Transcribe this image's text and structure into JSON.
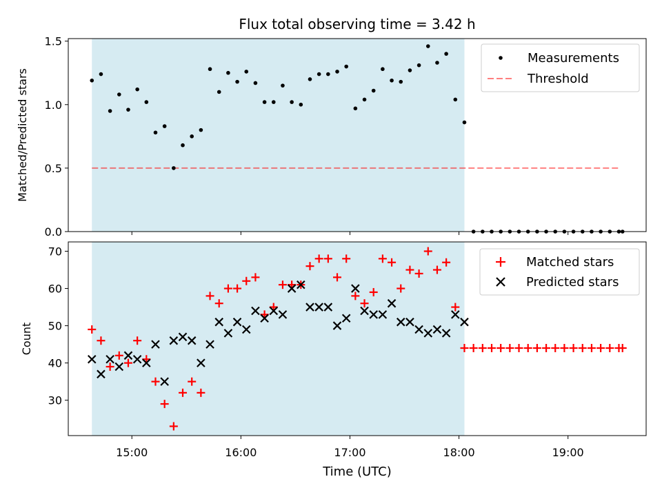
{
  "title": "Flux total observing time = 3.42 h",
  "xlabel": "Time (UTC)",
  "x_ticks": [
    "15:00",
    "16:00",
    "17:00",
    "18:00",
    "19:00"
  ],
  "colors": {
    "shade": "#add8e6",
    "measure": "#000000",
    "threshold": "#ff0000",
    "matched": "#ff0000",
    "predicted": "#000000"
  },
  "chart_data": [
    {
      "type": "scatter",
      "ylabel": "Matched/Predicted stars",
      "ylim": [
        0,
        1.52
      ],
      "y_ticks": [
        "0.0",
        "0.5",
        "1.0",
        "1.5"
      ],
      "shaded_interval": [
        "14:38",
        "18:03"
      ],
      "legend": {
        "placement": "top-right",
        "entries": [
          "Measurements",
          "Threshold"
        ]
      },
      "threshold": {
        "y": 0.5,
        "x_range": [
          "14:38",
          "19:28"
        ]
      },
      "measurements": {
        "x": [
          "14:38",
          "14:43",
          "14:48",
          "14:53",
          "14:58",
          "15:03",
          "15:08",
          "15:13",
          "15:18",
          "15:23",
          "15:28",
          "15:33",
          "15:38",
          "15:43",
          "15:48",
          "15:53",
          "15:58",
          "16:03",
          "16:08",
          "16:13",
          "16:18",
          "16:23",
          "16:28",
          "16:33",
          "16:38",
          "16:43",
          "16:48",
          "16:53",
          "16:58",
          "17:03",
          "17:08",
          "17:13",
          "17:18",
          "17:23",
          "17:28",
          "17:33",
          "17:38",
          "17:43",
          "17:48",
          "17:53",
          "17:58",
          "18:03",
          "18:08",
          "18:13",
          "18:18",
          "18:23",
          "18:28",
          "18:33",
          "18:38",
          "18:43",
          "18:48",
          "18:53",
          "18:58",
          "19:03",
          "19:08",
          "19:13",
          "19:18",
          "19:23",
          "19:28",
          "19:30"
        ],
        "y": [
          1.19,
          1.24,
          0.95,
          1.08,
          0.96,
          1.12,
          1.02,
          0.78,
          0.83,
          0.5,
          0.68,
          0.75,
          0.8,
          1.28,
          1.1,
          1.25,
          1.18,
          1.26,
          1.17,
          1.02,
          1.02,
          1.15,
          1.02,
          1.0,
          1.2,
          1.24,
          1.24,
          1.26,
          1.3,
          0.97,
          1.04,
          1.11,
          1.28,
          1.19,
          1.18,
          1.27,
          1.31,
          1.46,
          1.33,
          1.4,
          1.04,
          0.86,
          0,
          0,
          0,
          0,
          0,
          0,
          0,
          0,
          0,
          0,
          0,
          0,
          0,
          0,
          0,
          0,
          0,
          0
        ]
      }
    },
    {
      "type": "scatter",
      "ylabel": "Count",
      "ylim": [
        20.5,
        72.5
      ],
      "y_ticks": [
        "30",
        "40",
        "50",
        "60",
        "70"
      ],
      "shaded_interval": [
        "14:38",
        "18:03"
      ],
      "legend": {
        "placement": "top-right",
        "entries": [
          "Matched stars",
          "Predicted stars"
        ]
      },
      "x": [
        "14:38",
        "14:43",
        "14:48",
        "14:53",
        "14:58",
        "15:03",
        "15:08",
        "15:13",
        "15:18",
        "15:23",
        "15:28",
        "15:33",
        "15:38",
        "15:43",
        "15:48",
        "15:53",
        "15:58",
        "16:03",
        "16:08",
        "16:13",
        "16:18",
        "16:23",
        "16:28",
        "16:33",
        "16:38",
        "16:43",
        "16:48",
        "16:53",
        "16:58",
        "17:03",
        "17:08",
        "17:13",
        "17:18",
        "17:23",
        "17:28",
        "17:33",
        "17:38",
        "17:43",
        "17:48",
        "17:53",
        "17:58",
        "18:03",
        "18:08",
        "18:13",
        "18:18",
        "18:23",
        "18:28",
        "18:33",
        "18:38",
        "18:43",
        "18:48",
        "18:53",
        "18:58",
        "19:03",
        "19:08",
        "19:13",
        "19:18",
        "19:23",
        "19:28",
        "19:30"
      ],
      "series": [
        {
          "name": "Matched stars",
          "values": [
            49,
            46,
            39,
            42,
            40,
            46,
            41,
            35,
            29,
            23,
            32,
            35,
            32,
            58,
            56,
            60,
            60,
            62,
            63,
            53,
            55,
            61,
            61,
            61,
            66,
            68,
            68,
            63,
            68,
            58,
            56,
            59,
            68,
            67,
            60,
            65,
            64,
            70,
            65,
            67,
            55,
            44,
            44,
            44,
            44,
            44,
            44,
            44,
            44,
            44,
            44,
            44,
            44,
            44,
            44,
            44,
            44,
            44,
            44,
            44
          ]
        },
        {
          "name": "Predicted stars",
          "values": [
            41,
            37,
            41,
            39,
            42,
            41,
            40,
            45,
            35,
            46,
            47,
            46,
            40,
            45,
            51,
            48,
            51,
            49,
            54,
            52,
            54,
            53,
            60,
            61,
            55,
            55,
            55,
            50,
            52,
            60,
            54,
            53,
            53,
            56,
            51,
            51,
            49,
            48,
            49,
            48,
            53,
            51
          ]
        }
      ]
    }
  ]
}
